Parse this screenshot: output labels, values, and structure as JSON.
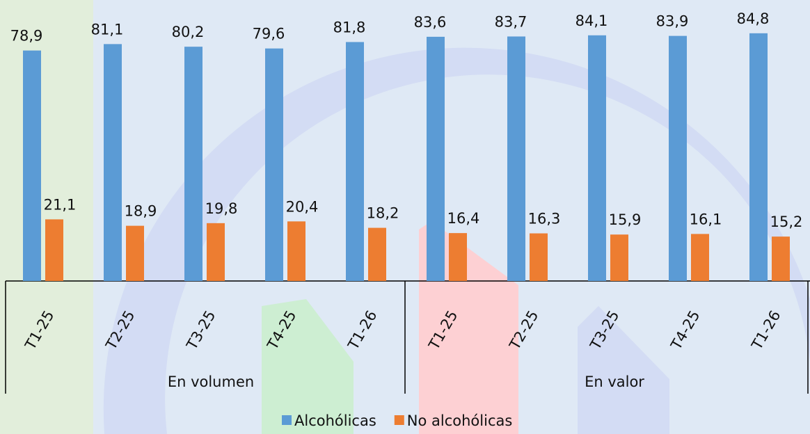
{
  "chart_data": {
    "type": "bar",
    "groups": [
      {
        "name": "En volumen",
        "categories": [
          "T1-25",
          "T2-25",
          "T3-25",
          "T4-25",
          "T1-26"
        ]
      },
      {
        "name": "En valor",
        "categories": [
          "T1-25",
          "T2-25",
          "T3-25",
          "T4-25",
          "T1-26"
        ]
      }
    ],
    "series": [
      {
        "name": "Alcohólicas",
        "color": "#5b9bd5",
        "values": [
          78.9,
          81.1,
          80.2,
          79.6,
          81.8,
          83.6,
          83.7,
          84.1,
          83.9,
          84.8
        ],
        "value_labels": [
          "78,9",
          "81,1",
          "80,2",
          "79,6",
          "81,8",
          "83,6",
          "83,7",
          "84,1",
          "83,9",
          "84,8"
        ]
      },
      {
        "name": "No alcohólicas",
        "color": "#ed7d31",
        "values": [
          21.1,
          18.9,
          19.8,
          20.4,
          18.2,
          16.4,
          16.3,
          15.9,
          16.1,
          15.2
        ],
        "value_labels": [
          "21,1",
          "18,9",
          "19,8",
          "20,4",
          "18,2",
          "16,4",
          "16,3",
          "15,9",
          "16,1",
          "15,2"
        ]
      }
    ],
    "legend": "bottom"
  }
}
